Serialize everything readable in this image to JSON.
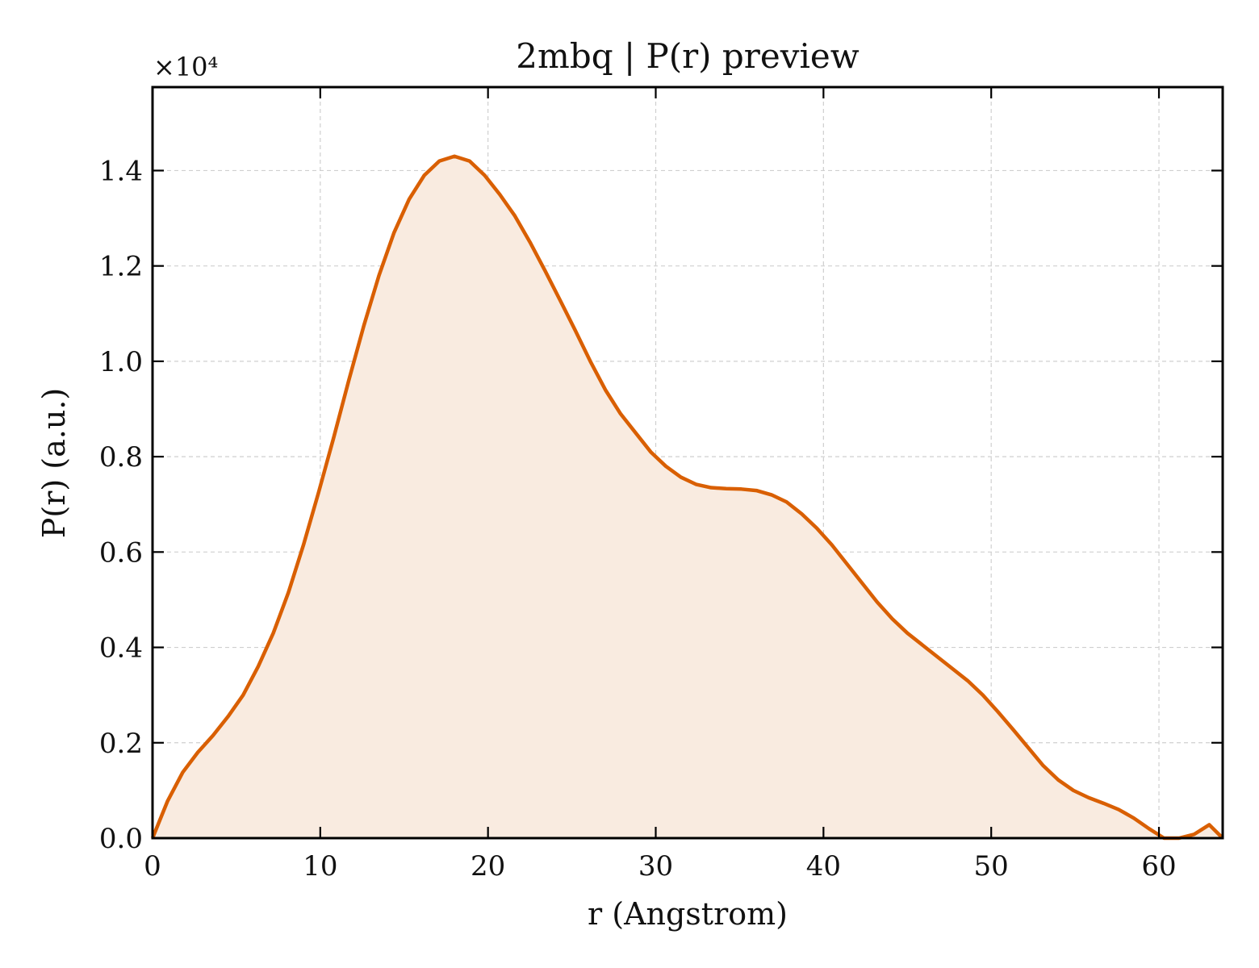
{
  "chart_data": {
    "type": "area",
    "title": "2mbq | P(r) preview",
    "xlabel": "r (Angstrom)",
    "ylabel": "P(r) (a.u.)",
    "y_scale_label": "×10⁴",
    "y_multiplier": 10000,
    "xlim": [
      0,
      63.8
    ],
    "ylim": [
      0,
      1.575
    ],
    "x_ticks": [
      0,
      10,
      20,
      30,
      40,
      50,
      60
    ],
    "x_tick_labels": [
      "0",
      "10",
      "20",
      "30",
      "40",
      "50",
      "60"
    ],
    "y_ticks": [
      0.0,
      0.2,
      0.4,
      0.6,
      0.8,
      1.0,
      1.2,
      1.4
    ],
    "y_tick_labels": [
      "0.0",
      "0.2",
      "0.4",
      "0.6",
      "0.8",
      "1.0",
      "1.2",
      "1.4"
    ],
    "grid": true,
    "colors": {
      "line": "#d95f02",
      "fill": "#f9ebe0"
    },
    "series": [
      {
        "x": [
          0,
          0.9,
          1.8,
          2.7,
          3.6,
          4.5,
          5.4,
          6.3,
          7.2,
          8.1,
          9.0,
          9.9,
          10.8,
          11.7,
          12.6,
          13.5,
          14.4,
          15.3,
          16.2,
          17.1,
          18.0,
          18.9,
          19.8,
          20.7,
          21.6,
          22.5,
          23.4,
          24.3,
          25.2,
          26.1,
          27.0,
          27.9,
          28.8,
          29.7,
          30.6,
          31.5,
          32.4,
          33.3,
          34.2,
          35.1,
          36.0,
          36.9,
          37.8,
          38.7,
          39.6,
          40.5,
          41.4,
          42.3,
          43.2,
          44.1,
          45.0,
          45.9,
          46.8,
          47.7,
          48.6,
          49.5,
          50.4,
          51.3,
          52.2,
          53.1,
          54.0,
          54.9,
          55.8,
          56.7,
          57.6,
          58.5,
          59.4,
          60.3,
          61.2,
          62.1,
          63.0,
          63.8
        ],
        "y": [
          0.0,
          0.078,
          0.138,
          0.18,
          0.215,
          0.255,
          0.3,
          0.36,
          0.43,
          0.515,
          0.615,
          0.725,
          0.84,
          0.96,
          1.075,
          1.18,
          1.27,
          1.34,
          1.39,
          1.42,
          1.43,
          1.42,
          1.39,
          1.35,
          1.305,
          1.25,
          1.19,
          1.128,
          1.065,
          1.0,
          0.94,
          0.89,
          0.85,
          0.81,
          0.78,
          0.757,
          0.742,
          0.735,
          0.733,
          0.732,
          0.729,
          0.72,
          0.705,
          0.68,
          0.65,
          0.615,
          0.575,
          0.535,
          0.495,
          0.46,
          0.43,
          0.405,
          0.38,
          0.355,
          0.33,
          0.3,
          0.265,
          0.228,
          0.19,
          0.152,
          0.122,
          0.1,
          0.085,
          0.073,
          0.06,
          0.042,
          0.02,
          0.0,
          -0.01,
          0.008,
          0.028,
          0.0
        ]
      }
    ]
  }
}
